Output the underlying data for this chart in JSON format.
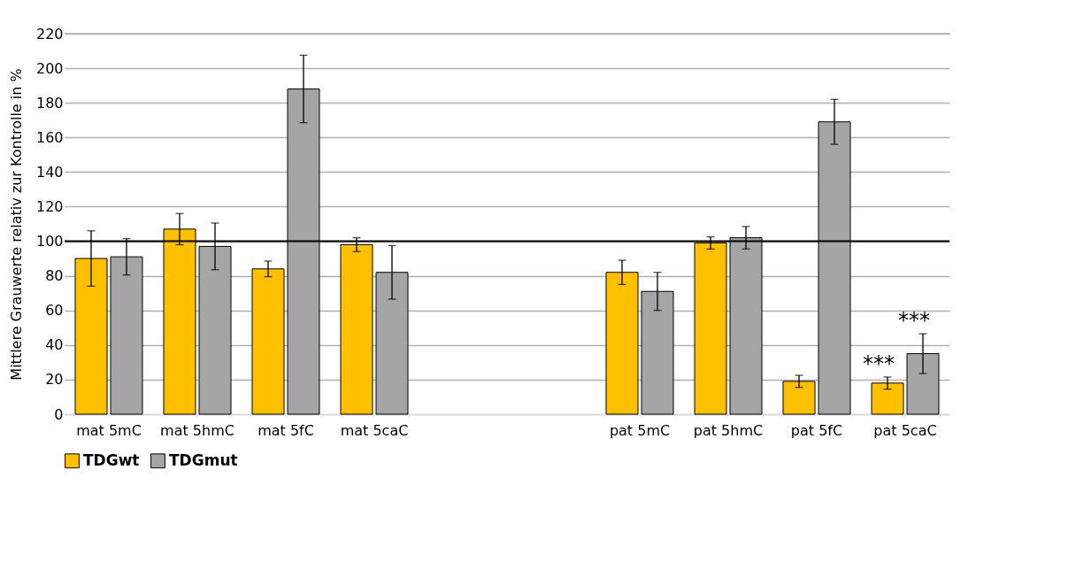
{
  "chart_data": {
    "type": "bar",
    "ylabel": "Mittlere Grauwerte relativ zur Kontrolle in %",
    "categories": [
      "mat 5mC",
      "mat 5hmC",
      "mat 5fC",
      "mat 5caC",
      null,
      null,
      "pat 5mC",
      "pat 5hmC",
      "pat 5fC",
      "pat 5caC"
    ],
    "series": [
      {
        "name": "TDGwt",
        "color": "#ffc000",
        "values": [
          90,
          107,
          84,
          98,
          null,
          null,
          82,
          99,
          19,
          18
        ],
        "errors": [
          16,
          9,
          4.5,
          4,
          null,
          null,
          7,
          3.5,
          3.5,
          3.5
        ]
      },
      {
        "name": "TDGmut",
        "color": "#a5a5a5",
        "values": [
          91,
          97,
          188,
          82,
          null,
          null,
          71,
          102,
          169,
          35
        ],
        "errors": [
          10.5,
          13.5,
          19.5,
          15.5,
          null,
          null,
          11,
          6.5,
          13,
          11.5
        ]
      }
    ],
    "ylim": [
      0,
      220
    ],
    "yticks": [
      0,
      20,
      40,
      60,
      80,
      100,
      120,
      140,
      160,
      180,
      200,
      220
    ],
    "grid": "y",
    "legend": "bottom",
    "ref_lines": [
      {
        "axis": "y",
        "value": 100,
        "color": "#000000"
      }
    ],
    "annotations": [
      "***",
      "***"
    ]
  }
}
